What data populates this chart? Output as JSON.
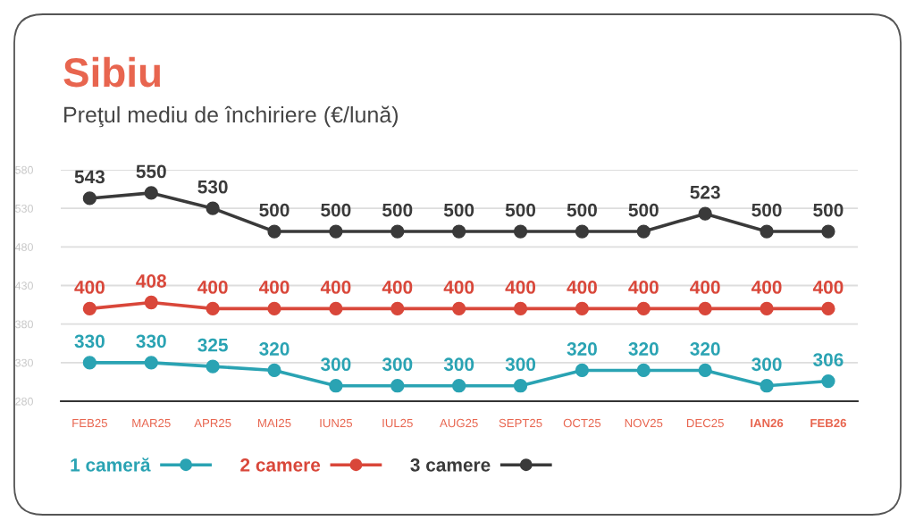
{
  "chart_data": {
    "type": "line",
    "title": "Sibiu",
    "subtitle": "Preţul mediu de închiriere (€/lună)",
    "categories": [
      "FEB25",
      "MAR25",
      "APR25",
      "MAI25",
      "IUN25",
      "IUL25",
      "AUG25",
      "SEPT25",
      "OCT25",
      "NOV25",
      "DEC25",
      "IAN26",
      "FEB26"
    ],
    "series": [
      {
        "name": "1 cameră",
        "color": "#2aa3b3",
        "values": [
          330,
          330,
          325,
          320,
          300,
          300,
          300,
          300,
          320,
          320,
          320,
          300,
          306
        ]
      },
      {
        "name": "2 camere",
        "color": "#d9473a",
        "values": [
          400,
          408,
          400,
          400,
          400,
          400,
          400,
          400,
          400,
          400,
          400,
          400,
          400
        ]
      },
      {
        "name": "3 camere",
        "color": "#3a3a3a",
        "values": [
          543,
          550,
          530,
          500,
          500,
          500,
          500,
          500,
          500,
          500,
          523,
          500,
          500
        ]
      }
    ],
    "ylim": [
      280,
      580
    ],
    "yticks": [
      280,
      330,
      380,
      430,
      480,
      530,
      580
    ],
    "grid": "y",
    "legend": "bottom",
    "marker": "circle",
    "line_style": "solid",
    "data_labels": true
  }
}
